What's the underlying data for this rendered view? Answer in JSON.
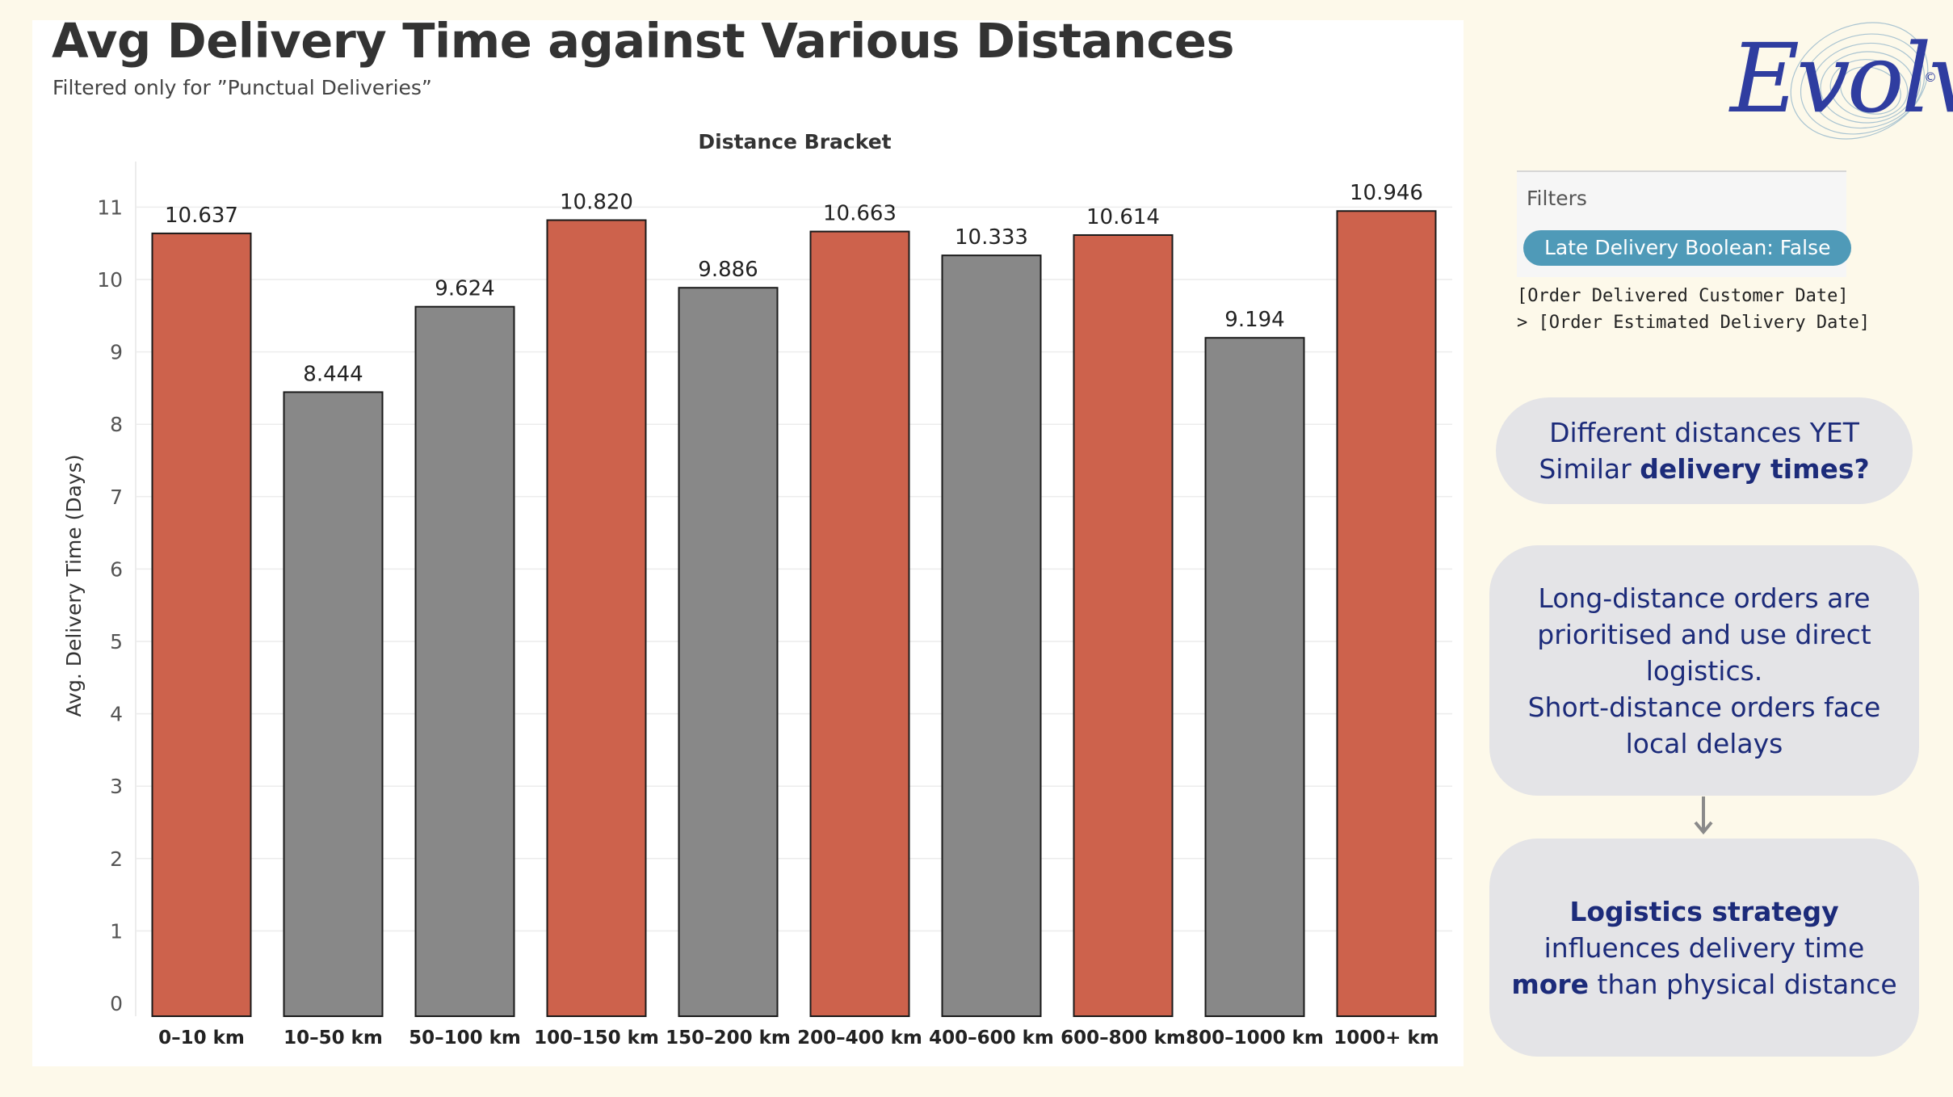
{
  "page": {
    "title": "Avg Delivery Time against Various Distances",
    "subtitle": "Filtered only for ”Punctual Deliveries”"
  },
  "logo": {
    "text": "Evolve",
    "mark": "©"
  },
  "filters": {
    "title": "Filters",
    "pill": "Late Delivery Boolean: False",
    "description_line1": "[Order Delivered Customer Date]",
    "description_line2": "> [Order Estimated Delivery Date]"
  },
  "callouts": {
    "c1_line1": "Different distances YET",
    "c1_line2_pre": "Similar ",
    "c1_line2_bold": "delivery times?",
    "c2_line1": "Long-distance orders are",
    "c2_line2": "prioritised and use direct",
    "c2_line3": "logistics.",
    "c2_line4": "Short-distance orders face",
    "c2_line5": "local delays",
    "c3_line1_bold": "Logistics strategy",
    "c3_line2": "influences delivery time",
    "c3_line3_bold": "more",
    "c3_line3_rest": " than physical distance"
  },
  "colors": {
    "highlight": "#cd624c",
    "neutral": "#888888",
    "pill": "#4f9ab8",
    "callout_text": "#1c2b7a",
    "callout_bg": "#e4e4e7",
    "background": "#fdf9ea"
  },
  "chart_data": {
    "type": "bar",
    "title": "Avg Delivery Time against Various Distances",
    "subtitle": "Filtered only for ”Punctual Deliveries”",
    "column_header": "Distance Bracket",
    "xlabel": "",
    "ylabel": "Avg. Delivery Time (Days)",
    "ylim": [
      0,
      11.1
    ],
    "yticks": [
      0,
      1,
      2,
      3,
      4,
      5,
      6,
      7,
      8,
      9,
      10,
      11
    ],
    "grid": true,
    "categories": [
      "0–10 km",
      "10–50 km",
      "50–100 km",
      "100–150 km",
      "150–200 km",
      "200–400 km",
      "400–600 km",
      "600–800 km",
      "800–1000 km",
      "1000+ km"
    ],
    "values": [
      10.637,
      8.444,
      9.624,
      10.82,
      9.886,
      10.663,
      10.333,
      10.614,
      9.194,
      10.946
    ],
    "value_labels": [
      "10.637",
      "8.444",
      "9.624",
      "10.820",
      "9.886",
      "10.663",
      "10.333",
      "10.614",
      "9.194",
      "10.946"
    ],
    "highlighted": [
      true,
      false,
      false,
      true,
      false,
      true,
      false,
      true,
      false,
      true
    ]
  }
}
